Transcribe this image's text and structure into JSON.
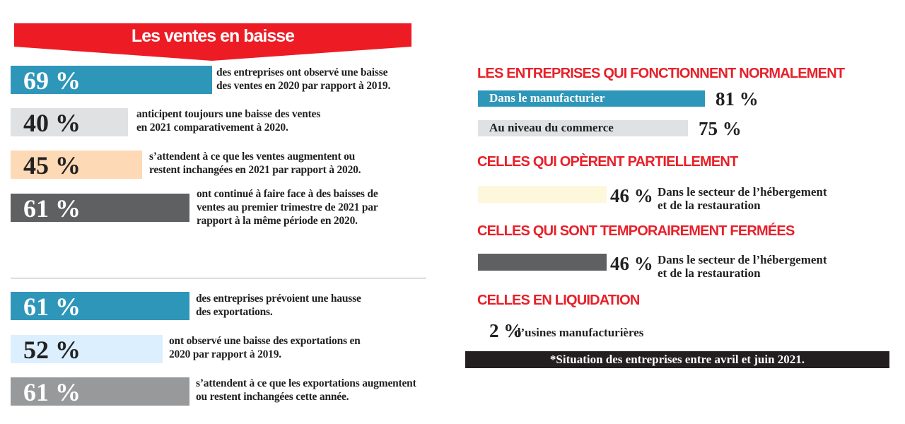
{
  "banner": {
    "title": "Les ventes en baisse",
    "color": "#ed1c24"
  },
  "sales_items": [
    {
      "percent": "69 %",
      "value": 69,
      "text": [
        "des entreprises ont observé une baisse",
        "des ventes en 2020 par rapport à 2019."
      ],
      "color": "#2e97b9"
    },
    {
      "percent": "40 %",
      "value": 40,
      "text": [
        "anticipent toujours une baisse des ventes",
        "en 2021 comparativement à 2020."
      ],
      "color": "#dfe1e3"
    },
    {
      "percent": "45 %",
      "value": 45,
      "text": [
        "s’attendent à ce que les ventes augmentent ou",
        "restent inchangées en 2021 par rapport à 2020."
      ],
      "color": "#fdd9b5"
    },
    {
      "percent": "61 %",
      "value": 61,
      "text": [
        "ont continué à faire face à des baisses de",
        "ventes au premier trimestre de 2021 par",
        "rapport à la même période en 2020."
      ],
      "color": "#5f6062"
    }
  ],
  "export_items": [
    {
      "percent": "61 %",
      "value": 61,
      "text": [
        "des entreprises prévoient une hausse",
        "des exportations."
      ],
      "color": "#2e97b9"
    },
    {
      "percent": "52 %",
      "value": 52,
      "text": [
        "ont observé une baisse des exportations en",
        "2020 par rapport à 2019."
      ],
      "color": "#dcefff"
    },
    {
      "percent": "61 %",
      "value": 61,
      "text": [
        "s’attendent à ce que les exportations augmentent",
        "ou restent inchangées cette année."
      ],
      "color": "#97999b"
    }
  ],
  "status": {
    "normal": {
      "heading": "LES ENTREPRISES QUI FONCTIONNENT NORMALEMENT",
      "items": [
        {
          "label": "Dans le manufacturier",
          "percent": "81 %",
          "value": 81,
          "color": "#2e97b9"
        },
        {
          "label": "Au niveau du commerce",
          "percent": "75 %",
          "value": 75,
          "color": "#dfe1e3"
        }
      ]
    },
    "partial": {
      "heading": "CELLES QUI OPÈRENT  PARTIELLEMENT",
      "percent": "46 %",
      "value": 46,
      "text": [
        "Dans le secteur de l’hébergement",
        "et de la restauration"
      ],
      "color": "#fdf8dc"
    },
    "closed": {
      "heading": "CELLES QUI SONT TEMPORAIREMENT FERMÉES",
      "percent": "46 %",
      "value": 46,
      "text": [
        "Dans le secteur de l’hébergement",
        "et de la restauration"
      ],
      "color": "#5f6062"
    },
    "liquidation": {
      "heading": "CELLES EN LIQUIDATION",
      "percent": "2 %",
      "value": 2,
      "text": "d’usines manufacturières"
    }
  },
  "footnote": "*Situation des entreprises entre avril et juin 2021."
}
